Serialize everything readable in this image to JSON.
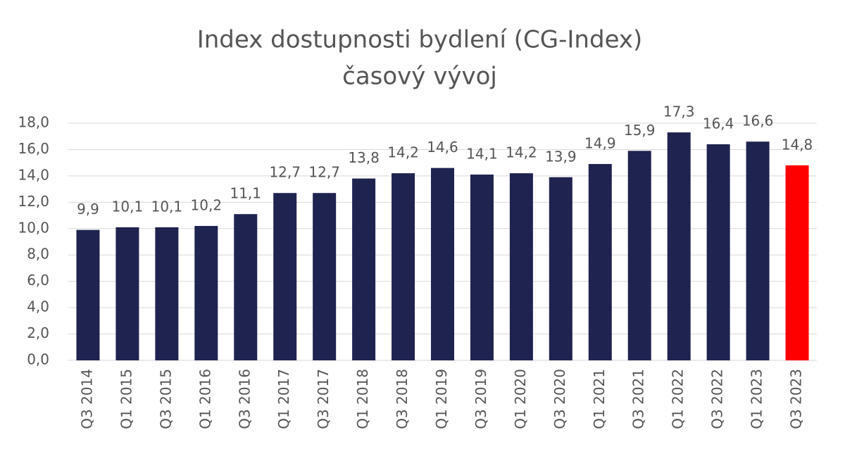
{
  "chart_data": {
    "type": "bar",
    "title": "Index dostupnosti bydlení (CG-Index)",
    "subtitle": "časový vývoj",
    "categories": [
      "Q3 2014",
      "Q1 2015",
      "Q3 2015",
      "Q1 2016",
      "Q3 2016",
      "Q1 2017",
      "Q3 2017",
      "Q1 2018",
      "Q3 2018",
      "Q1 2019",
      "Q3 2019",
      "Q1 2020",
      "Q3 2020",
      "Q1 2021",
      "Q3 2021",
      "Q1 2022",
      "Q3 2022",
      "Q1 2023",
      "Q3 2023"
    ],
    "values": [
      9.9,
      10.1,
      10.1,
      10.2,
      11.1,
      12.7,
      12.7,
      13.8,
      14.2,
      14.6,
      14.1,
      14.2,
      13.9,
      14.9,
      15.9,
      17.3,
      16.4,
      16.6,
      14.8
    ],
    "value_labels": [
      "9,9",
      "10,1",
      "10,1",
      "10,2",
      "11,1",
      "12,7",
      "12,7",
      "13,8",
      "14,2",
      "14,6",
      "14,1",
      "14,2",
      "13,9",
      "14,9",
      "15,9",
      "17,3",
      "16,4",
      "16,6",
      "14,8"
    ],
    "colors": [
      "#1f2350",
      "#1f2350",
      "#1f2350",
      "#1f2350",
      "#1f2350",
      "#1f2350",
      "#1f2350",
      "#1f2350",
      "#1f2350",
      "#1f2350",
      "#1f2350",
      "#1f2350",
      "#1f2350",
      "#1f2350",
      "#1f2350",
      "#1f2350",
      "#1f2350",
      "#1f2350",
      "#ff0000"
    ],
    "ylim": [
      0,
      18
    ],
    "yticks": [
      {
        "value": 0,
        "label": "0,0"
      },
      {
        "value": 2,
        "label": "2,0"
      },
      {
        "value": 4,
        "label": "4,0"
      },
      {
        "value": 6,
        "label": "6,0"
      },
      {
        "value": 8,
        "label": "8,0"
      },
      {
        "value": 10,
        "label": "10,0"
      },
      {
        "value": 12,
        "label": "12,0"
      },
      {
        "value": 14,
        "label": "14,0"
      },
      {
        "value": 16,
        "label": "16,0"
      },
      {
        "value": 18,
        "label": "18,0"
      }
    ],
    "grid": true
  }
}
